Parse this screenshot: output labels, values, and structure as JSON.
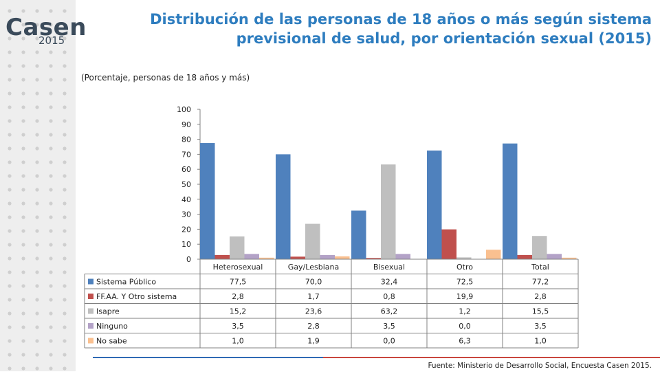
{
  "logo": {
    "word": "Casen",
    "year": "2015"
  },
  "title": "Distribución de las personas de 18 años o más según sistema previsional de salud, por orientación sexual (2015)",
  "subtitle": "(Porcentaje, personas de 18 años y más)",
  "source": "Fuente: Ministerio de Desarrollo Social, Encuesta Casen 2015.",
  "colors": {
    "title": "#2e7dbf",
    "sidebar": "#eeeeee",
    "rule_blue": "#2f6ab4",
    "rule_red": "#c9463d"
  },
  "chart_data": {
    "type": "bar",
    "categories": [
      "Heterosexual",
      "Gay/Lesbiana",
      "Bisexual",
      "Otro",
      "Total"
    ],
    "series": [
      {
        "name": "Sistema Público",
        "color": "#4f81bd",
        "values": [
          77.5,
          70.0,
          32.4,
          72.5,
          77.2
        ],
        "labels": [
          "77,5",
          "70,0",
          "32,4",
          "72,5",
          "77,2"
        ]
      },
      {
        "name": "FF.AA. Y Otro sistema",
        "color": "#c0504d",
        "values": [
          2.8,
          1.7,
          0.8,
          19.9,
          2.8
        ],
        "labels": [
          "2,8",
          "1,7",
          "0,8",
          "19,9",
          "2,8"
        ]
      },
      {
        "name": "Isapre",
        "color": "#bfbfbf",
        "values": [
          15.2,
          23.6,
          63.2,
          1.2,
          15.5
        ],
        "labels": [
          "15,2",
          "23,6",
          "63,2",
          "1,2",
          "15,5"
        ]
      },
      {
        "name": "Ninguno",
        "color": "#b3a2c7",
        "values": [
          3.5,
          2.8,
          3.5,
          0.0,
          3.5
        ],
        "labels": [
          "3,5",
          "2,8",
          "3,5",
          "0,0",
          "3,5"
        ]
      },
      {
        "name": "No sabe",
        "color": "#fac090",
        "values": [
          1.0,
          1.9,
          0.0,
          6.3,
          1.0
        ],
        "labels": [
          "1,0",
          "1,9",
          "0,0",
          "6,3",
          "1,0"
        ]
      }
    ],
    "ylim": [
      0,
      100
    ],
    "yticks": [
      "0",
      "10",
      "20",
      "30",
      "40",
      "50",
      "60",
      "70",
      "80",
      "90",
      "100"
    ],
    "grid": false,
    "legend": "data-table"
  }
}
